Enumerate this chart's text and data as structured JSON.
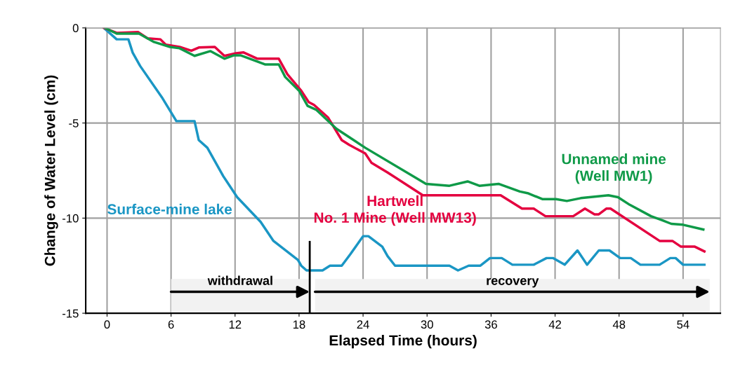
{
  "chart_data": {
    "type": "line",
    "xlabel": "Elapsed Time (hours)",
    "ylabel": "Change of Water Level (cm)",
    "xlim": [
      -2,
      57.5
    ],
    "ylim": [
      -15,
      0
    ],
    "xticks": [
      0,
      6,
      12,
      18,
      24,
      30,
      36,
      42,
      48,
      54
    ],
    "yticks": [
      {
        "value": 0,
        "label": "0"
      },
      {
        "value": -5,
        "label": "-5"
      },
      {
        "value": -10,
        "label": "-10"
      },
      {
        "value": -15,
        "label": "-15"
      }
    ],
    "grid": true,
    "legend": false,
    "line_style": "solid",
    "marker": "none",
    "series": [
      {
        "name": "Surface-mine lake",
        "color": "#1a96c4",
        "x": [
          -0.3,
          0.9,
          2.0,
          2.4,
          3.1,
          5.2,
          6.5,
          7.0,
          8.2,
          8.6,
          9.4,
          10.9,
          12.2,
          14.4,
          15.6,
          17.9,
          18.2,
          18.7,
          20.2,
          20.9,
          22.0,
          22.8,
          24.0,
          24.5,
          25.8,
          26.3,
          27.0,
          32.1,
          32.9,
          33.9,
          35.0,
          35.9,
          37.0,
          38.0,
          40.0,
          41.2,
          41.8,
          42.9,
          44.1,
          45.0,
          46.1,
          47.1,
          48.1,
          49.1,
          50.0,
          51.8,
          52.8,
          53.3,
          54.0,
          56.0
        ],
        "values": [
          0,
          -0.6,
          -0.6,
          -1.3,
          -2.0,
          -3.7,
          -4.9,
          -4.9,
          -4.9,
          -5.9,
          -6.3,
          -7.8,
          -8.9,
          -10.2,
          -11.2,
          -12.2,
          -12.5,
          -12.75,
          -12.75,
          -12.5,
          -12.5,
          -11.9,
          -10.95,
          -10.95,
          -11.5,
          -12.0,
          -12.5,
          -12.5,
          -12.75,
          -12.5,
          -12.5,
          -12.1,
          -12.1,
          -12.45,
          -12.45,
          -12.1,
          -12.1,
          -12.45,
          -11.7,
          -12.45,
          -11.7,
          -11.7,
          -12.1,
          -12.1,
          -12.45,
          -12.45,
          -12.1,
          -12.1,
          -12.45,
          -12.45
        ]
      },
      {
        "name": "Hartwell\nNo. 1 Mine (Well MW13)",
        "color": "#e4003f",
        "x": [
          -0.3,
          0.9,
          2.9,
          3.8,
          5.0,
          5.5,
          6.8,
          7.9,
          8.6,
          10.1,
          11.0,
          12.1,
          12.8,
          14.1,
          16.1,
          16.9,
          18.2,
          18.9,
          19.4,
          20.7,
          22.0,
          22.7,
          24.2,
          24.8,
          26.3,
          29.6,
          36.9,
          38.9,
          40.0,
          41.1,
          43.7,
          44.8,
          45.7,
          46.1,
          46.8,
          47.2,
          51.8,
          53.0,
          53.8,
          55.1,
          56.0
        ],
        "values": [
          0,
          -0.26,
          -0.22,
          -0.55,
          -0.6,
          -0.88,
          -1.0,
          -1.2,
          -1.03,
          -1.0,
          -1.47,
          -1.33,
          -1.29,
          -1.62,
          -1.62,
          -2.43,
          -3.3,
          -3.9,
          -4.05,
          -4.7,
          -5.9,
          -6.15,
          -6.6,
          -7.1,
          -7.6,
          -8.8,
          -8.8,
          -9.5,
          -9.5,
          -9.9,
          -9.9,
          -9.5,
          -9.8,
          -9.8,
          -9.5,
          -9.5,
          -11.2,
          -11.2,
          -11.5,
          -11.5,
          -11.75
        ]
      },
      {
        "name": "Unnamed mine\n(Well MW1)",
        "color": "#0f9a48",
        "x": [
          -0.2,
          0.9,
          3.0,
          4.4,
          5.9,
          6.8,
          8.2,
          9.7,
          11.0,
          11.9,
          12.5,
          14.8,
          16.1,
          16.7,
          18.0,
          18.8,
          19.6,
          21.5,
          24.2,
          29.9,
          32.1,
          33.8,
          34.9,
          36.7,
          38.7,
          39.5,
          40.8,
          42.1,
          43.1,
          44.4,
          47.0,
          47.9,
          49.0,
          51.0,
          52.0,
          52.9,
          54.0,
          55.9
        ],
        "values": [
          0,
          -0.3,
          -0.3,
          -0.74,
          -1.0,
          -1.07,
          -1.47,
          -1.22,
          -1.62,
          -1.44,
          -1.44,
          -1.92,
          -1.92,
          -2.58,
          -3.3,
          -4.1,
          -4.3,
          -5.3,
          -6.3,
          -8.2,
          -8.3,
          -8.07,
          -8.3,
          -8.2,
          -8.6,
          -8.7,
          -9.0,
          -9.0,
          -9.1,
          -8.95,
          -8.8,
          -8.9,
          -9.3,
          -9.9,
          -10.1,
          -10.3,
          -10.35,
          -10.6
        ]
      }
    ],
    "ref_lines": [
      {
        "axis": "x",
        "value": 19,
        "color": "#000000"
      }
    ],
    "bands": [
      {
        "axis": "x",
        "from": 6,
        "to": 19,
        "label": "withdrawal",
        "color": "#f2f2f2"
      },
      {
        "axis": "x",
        "from": 19.5,
        "to": 56.5,
        "label": "recovery",
        "color": "#f2f2f2"
      }
    ]
  }
}
